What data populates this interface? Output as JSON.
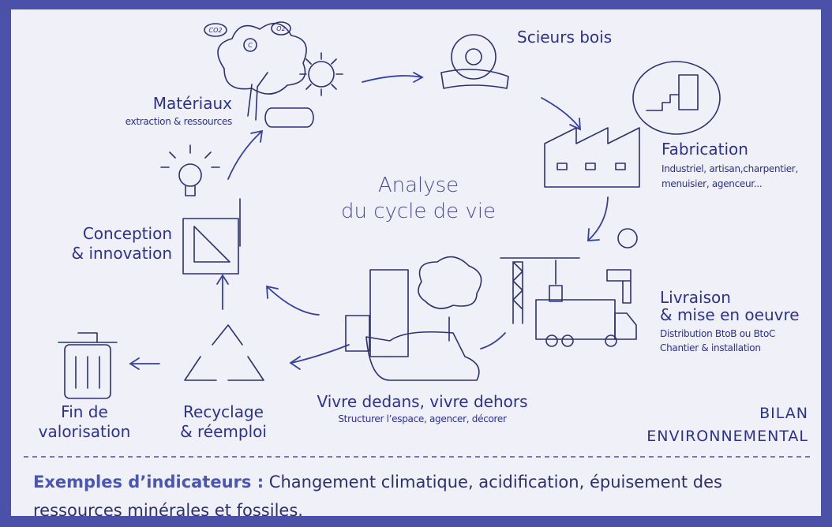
{
  "title": [
    "Analyse",
    "du cycle de vie"
  ],
  "tree_labels": [
    "CO2",
    "C",
    "O2"
  ],
  "stages": [
    {
      "label": [
        "Matériaux"
      ],
      "details": [
        "extraction & ressources"
      ]
    },
    {
      "label": [
        "Scieurs bois"
      ],
      "details": []
    },
    {
      "label": [
        "Fabrication"
      ],
      "details": [
        "Industriel, artisan,charpentier,",
        "menuisier, agenceur..."
      ]
    },
    {
      "label": [
        "Livraison",
        "& mise en oeuvre"
      ],
      "details": [
        "Distribution BtoB ou BtoC",
        "Chantier & installation"
      ]
    },
    {
      "label": [
        "Vivre dedans, vivre dehors"
      ],
      "details": [
        "Structurer l’espace, agencer, décorer"
      ]
    },
    {
      "label": [
        "Recyclage",
        "& réemploi"
      ],
      "details": []
    },
    {
      "label": [
        "Fin de",
        "valorisation"
      ],
      "details": []
    },
    {
      "label": [
        "Conception",
        "& innovation"
      ],
      "details": []
    }
  ],
  "badge": [
    "BILAN",
    "ENVIRONNEMENTAL"
  ],
  "footer": {
    "heading": "Exemples d’indicateurs :",
    "text": "Changement climatique, acidification, épuisement des ressources minérales et fossiles."
  }
}
